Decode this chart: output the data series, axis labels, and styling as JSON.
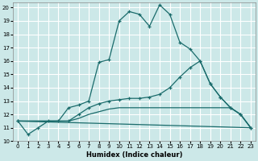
{
  "xlabel": "Humidex (Indice chaleur)",
  "bg_color": "#cce8e8",
  "grid_color": "#ffffff",
  "line_color": "#1a6b6b",
  "xlim": [
    -0.5,
    23.5
  ],
  "ylim": [
    10,
    20.4
  ],
  "xticks": [
    0,
    1,
    2,
    3,
    4,
    5,
    6,
    7,
    8,
    9,
    10,
    11,
    12,
    13,
    14,
    15,
    16,
    17,
    18,
    19,
    20,
    21,
    22,
    23
  ],
  "yticks": [
    10,
    11,
    12,
    13,
    14,
    15,
    16,
    17,
    18,
    19,
    20
  ],
  "line1_x": [
    0,
    1,
    2,
    3,
    4,
    5,
    6,
    7,
    8,
    9,
    10,
    11,
    12,
    13,
    14,
    15,
    16,
    17,
    18,
    19,
    20,
    21,
    22,
    23
  ],
  "line1_y": [
    11.5,
    10.5,
    11.0,
    11.5,
    11.5,
    12.5,
    12.7,
    13.0,
    15.9,
    16.1,
    19.0,
    19.7,
    19.5,
    18.6,
    20.2,
    19.5,
    17.4,
    16.9,
    16.0,
    14.3,
    13.3,
    12.5,
    12.0,
    11.0
  ],
  "line2_x": [
    0,
    5,
    6,
    7,
    8,
    9,
    10,
    11,
    12,
    13,
    14,
    15,
    16,
    17,
    18,
    19,
    20,
    21,
    22,
    23
  ],
  "line2_y": [
    11.5,
    11.5,
    12.0,
    12.5,
    12.8,
    13.0,
    13.1,
    13.2,
    13.2,
    13.3,
    13.5,
    14.0,
    14.8,
    15.5,
    16.0,
    14.3,
    13.3,
    12.5,
    12.0,
    11.0
  ],
  "line3_x": [
    0,
    5,
    6,
    7,
    8,
    9,
    10,
    11,
    12,
    13,
    14,
    15,
    16,
    17,
    18,
    19,
    20,
    21,
    22,
    23
  ],
  "line3_y": [
    11.5,
    11.5,
    11.7,
    12.0,
    12.2,
    12.4,
    12.5,
    12.5,
    12.5,
    12.5,
    12.5,
    12.5,
    12.5,
    12.5,
    12.5,
    12.5,
    12.5,
    12.5,
    12.0,
    11.0
  ],
  "line4_x": [
    0,
    23
  ],
  "line4_y": [
    11.5,
    11.0
  ],
  "xlabel_fontsize": 6,
  "tick_fontsize": 5
}
